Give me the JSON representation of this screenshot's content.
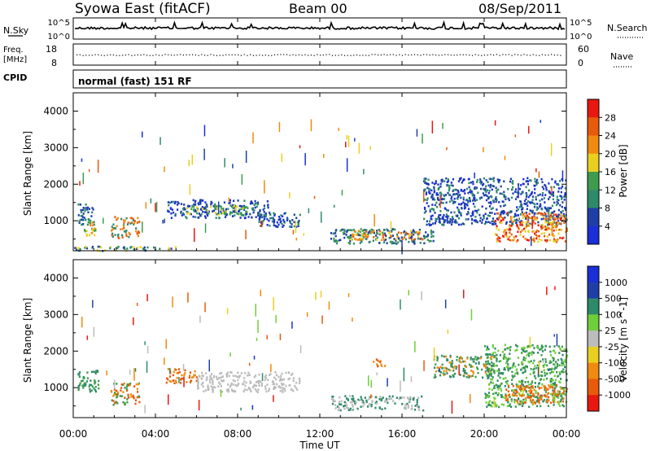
{
  "header": {
    "station": "Syowa East (fitACF)",
    "beam": "Beam 00",
    "date": "08/Sep/2011"
  },
  "nsky_panel": {
    "left_label": "N.Sky",
    "left_ticks": [
      "10^5",
      "10^0"
    ],
    "right_label": "N.Search",
    "right_ticks": [
      "10^5",
      "10^0"
    ]
  },
  "freq_panel": {
    "left_label_1": "Freq.",
    "left_label_2": "[MHz]",
    "left_ticks": [
      "18",
      "8"
    ],
    "right_label": "Nave",
    "right_ticks": [
      "60",
      "0"
    ]
  },
  "cpid_panel": {
    "label": "CPID",
    "mode": "normal (fast) 151 RF"
  },
  "time_axis": {
    "label": "Time UT",
    "ticks": [
      "00:00",
      "04:00",
      "08:00",
      "12:00",
      "16:00",
      "20:00",
      "00:00"
    ]
  },
  "colors": {
    "blue": "#1a2fd6",
    "darkblue": "#1f3fa8",
    "teal": "#2e8a6a",
    "green": "#3e9c4e",
    "lightgreen": "#6fcf3a",
    "yellow": "#e9d020",
    "orange": "#f08a10",
    "darkorange": "#e85a0c",
    "red": "#e81810",
    "gray": "#bcbcbc"
  },
  "chart_data": [
    {
      "type": "heatmap",
      "panel": "power",
      "ylabel": "Slant Range [km]",
      "yticks": [
        "4000",
        "3000",
        "2000",
        "1000"
      ],
      "ylim": [
        180,
        4500
      ],
      "xlim_hours": [
        0,
        24
      ],
      "colorbar": {
        "label": "Power [dB]",
        "ticks": [
          "28",
          "24",
          "20",
          "16",
          "12",
          "8",
          "4"
        ],
        "colors": [
          "#e81810",
          "#e85a0c",
          "#f08a10",
          "#e9d020",
          "#3e9c4e",
          "#2e8a6a",
          "#1f3fa8",
          "#1a2fd6"
        ]
      },
      "blobs": [
        {
          "t": [
            0.2,
            1.0
          ],
          "r": [
            900,
            1500
          ],
          "c": [
            "#1f3fa8",
            "#2e8a6a"
          ]
        },
        {
          "t": [
            0.5,
            1.1
          ],
          "r": [
            600,
            1000
          ],
          "c": [
            "#f08a10",
            "#e9d020",
            "#3e9c4e"
          ]
        },
        {
          "t": [
            1.8,
            3.2
          ],
          "r": [
            550,
            1150
          ],
          "c": [
            "#2e8a6a",
            "#f08a10",
            "#e85a0c"
          ]
        },
        {
          "t": [
            4.5,
            9.5
          ],
          "r": [
            1100,
            1600
          ],
          "c": [
            "#1f3fa8",
            "#2e8a6a",
            "#1a2fd6"
          ]
        },
        {
          "t": [
            5.5,
            8.5
          ],
          "r": [
            1200,
            1450
          ],
          "c": [
            "#e9d020",
            "#3e9c4e"
          ]
        },
        {
          "t": [
            9.0,
            11.0
          ],
          "r": [
            850,
            1250
          ],
          "c": [
            "#1a2fd6",
            "#1f3fa8",
            "#2e8a6a"
          ]
        },
        {
          "t": [
            12.5,
            17.5
          ],
          "r": [
            400,
            800
          ],
          "c": [
            "#1f3fa8",
            "#2e8a6a",
            "#3e9c4e"
          ]
        },
        {
          "t": [
            13.5,
            17.0
          ],
          "r": [
            500,
            750
          ],
          "c": [
            "#f08a10",
            "#e9d020",
            "#e85a0c"
          ]
        },
        {
          "t": [
            17.0,
            24.0
          ],
          "r": [
            900,
            2200
          ],
          "c": [
            "#1f3fa8",
            "#2e8a6a",
            "#1a2fd6"
          ]
        },
        {
          "t": [
            20.5,
            24.0
          ],
          "r": [
            450,
            1250
          ],
          "c": [
            "#f08a10",
            "#e9d020",
            "#e85a0c",
            "#e81810"
          ]
        },
        {
          "t": [
            0.0,
            5.0
          ],
          "r": [
            200,
            320
          ],
          "c": [
            "#2e8a6a",
            "#1f3fa8",
            "#e9d020"
          ]
        }
      ]
    },
    {
      "type": "heatmap",
      "panel": "velocity",
      "ylabel": "Slant Range [km]",
      "yticks": [
        "4000",
        "3000",
        "2000",
        "1000"
      ],
      "ylim": [
        180,
        4500
      ],
      "xlim_hours": [
        0,
        24
      ],
      "colorbar": {
        "label": "Velocity [m s^-1]",
        "ticks": [
          "1000",
          "500",
          "100",
          "25",
          "-25",
          "-100",
          "-500",
          "-1000"
        ],
        "colors": [
          "#1a2fd6",
          "#1f3fa8",
          "#2e8a6a",
          "#6fcf3a",
          "#bcbcbc",
          "#e9d020",
          "#f08a10",
          "#e85a0c",
          "#e81810"
        ]
      },
      "blobs": [
        {
          "t": [
            0.2,
            1.2
          ],
          "r": [
            900,
            1500
          ],
          "c": [
            "#2e8a6a",
            "#3e9c4e"
          ]
        },
        {
          "t": [
            1.8,
            3.2
          ],
          "r": [
            550,
            1150
          ],
          "c": [
            "#f08a10",
            "#e85a0c",
            "#3e9c4e"
          ]
        },
        {
          "t": [
            4.5,
            6.0
          ],
          "r": [
            1150,
            1550
          ],
          "c": [
            "#f08a10",
            "#e85a0c"
          ]
        },
        {
          "t": [
            6.0,
            11.0
          ],
          "r": [
            900,
            1450
          ],
          "c": [
            "#bcbcbc"
          ]
        },
        {
          "t": [
            12.5,
            17.0
          ],
          "r": [
            400,
            800
          ],
          "c": [
            "#bcbcbc",
            "#2e8a6a"
          ]
        },
        {
          "t": [
            14.5,
            15.2
          ],
          "r": [
            1600,
            1800
          ],
          "c": [
            "#f08a10",
            "#e85a0c"
          ]
        },
        {
          "t": [
            17.5,
            20.5
          ],
          "r": [
            1300,
            1900
          ],
          "c": [
            "#f08a10",
            "#2e8a6a",
            "#3e9c4e"
          ]
        },
        {
          "t": [
            20.0,
            24.0
          ],
          "r": [
            500,
            2200
          ],
          "c": [
            "#2e8a6a",
            "#3e9c4e",
            "#6fcf3a"
          ]
        },
        {
          "t": [
            21.0,
            24.0
          ],
          "r": [
            600,
            1100
          ],
          "c": [
            "#f08a10",
            "#e85a0c"
          ]
        }
      ]
    }
  ]
}
